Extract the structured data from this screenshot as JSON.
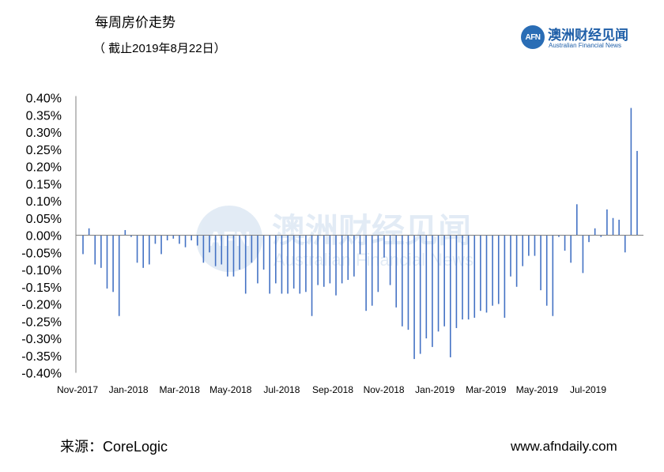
{
  "header": {
    "title": "每周房价走势",
    "subtitle": "（ 截止2019年8月22日）"
  },
  "logo": {
    "badge": "AFN",
    "name_cn": "澳洲财经见闻",
    "name_en": "Australian Financial News"
  },
  "watermark": {
    "badge": "AFN",
    "name_cn": "澳洲财经见闻",
    "name_en": "Australian Financial News"
  },
  "footer": {
    "source": "来源：CoreLogic",
    "website": "www.afndaily.com"
  },
  "colors": {
    "bar": "#4472c4",
    "axis": "#7f7f7f",
    "brand": "#1f5fa8"
  },
  "chart_data": {
    "type": "bar",
    "title": "每周房价走势",
    "subtitle": "（ 截止2019年8月22日）",
    "xlabel": "",
    "ylabel": "",
    "ylim": [
      -0.4,
      0.4
    ],
    "y_unit": "%",
    "grid": false,
    "legend": "none",
    "y_ticks": [
      "0.40%",
      "0.35%",
      "0.30%",
      "0.25%",
      "0.20%",
      "0.15%",
      "0.10%",
      "0.05%",
      "0.00%",
      "-0.05%",
      "-0.10%",
      "-0.15%",
      "-0.20%",
      "-0.25%",
      "-0.30%",
      "-0.35%",
      "-0.40%"
    ],
    "x_ticks": [
      "Nov-2017",
      "Jan-2018",
      "Mar-2018",
      "May-2018",
      "Jul-2018",
      "Sep-2018",
      "Nov-2018",
      "Jan-2019",
      "Mar-2019",
      "May-2019",
      "Jul-2019"
    ],
    "series": [
      {
        "values": [
          -0.055,
          0.02,
          -0.085,
          -0.095,
          -0.155,
          -0.165,
          -0.235,
          0.015,
          -0.005,
          -0.08,
          -0.095,
          -0.085,
          -0.025,
          -0.055,
          -0.015,
          -0.01,
          -0.025,
          -0.035,
          -0.015,
          -0.03,
          -0.08,
          -0.05,
          -0.09,
          -0.085,
          -0.12,
          -0.12,
          -0.1,
          -0.17,
          -0.08,
          -0.14,
          -0.1,
          -0.17,
          -0.14,
          -0.17,
          -0.17,
          -0.155,
          -0.17,
          -0.165,
          -0.235,
          -0.145,
          -0.15,
          -0.14,
          -0.175,
          -0.14,
          -0.13,
          -0.12,
          -0.055,
          -0.22,
          -0.205,
          -0.165,
          -0.065,
          -0.145,
          -0.21,
          -0.265,
          -0.275,
          -0.36,
          -0.345,
          -0.3,
          -0.325,
          -0.28,
          -0.265,
          -0.355,
          -0.27,
          -0.245,
          -0.245,
          -0.24,
          -0.22,
          -0.225,
          -0.205,
          -0.2,
          -0.24,
          -0.12,
          -0.15,
          -0.09,
          -0.06,
          -0.06,
          -0.16,
          -0.205,
          -0.235,
          -0.005,
          -0.045,
          -0.08,
          0.09,
          -0.11,
          -0.02,
          0.02,
          -0.005,
          0.075,
          0.05,
          0.045,
          -0.05,
          0.37,
          0.245
        ]
      }
    ]
  }
}
